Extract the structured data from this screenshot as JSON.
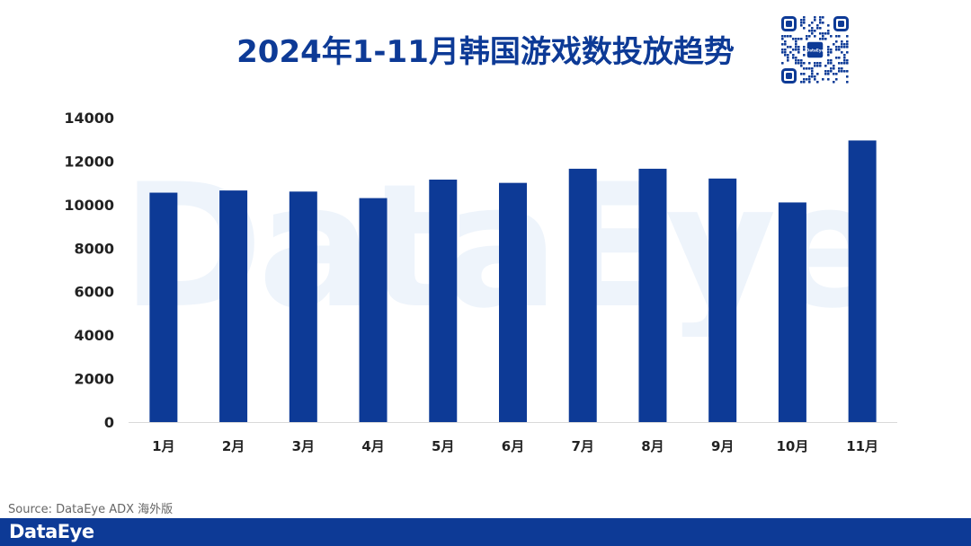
{
  "header": {
    "title": "2024年1-11月韩国游戏数投放趋势",
    "qr_center_label": "DataEye"
  },
  "watermark": "DataEye",
  "chart_data": {
    "type": "bar",
    "title": "2024年1-11月韩国游戏数投放趋势",
    "xlabel": "",
    "ylabel": "",
    "categories": [
      "1月",
      "2月",
      "3月",
      "4月",
      "5月",
      "6月",
      "7月",
      "8月",
      "9月",
      "10月",
      "11月"
    ],
    "values": [
      10550,
      10650,
      10600,
      10300,
      11150,
      11000,
      11650,
      11650,
      11200,
      10100,
      12950
    ],
    "ylim": [
      0,
      14000
    ],
    "yticks": [
      0,
      2000,
      4000,
      6000,
      8000,
      10000,
      12000,
      14000
    ],
    "grid": false,
    "legend": "none",
    "bar_color": "#0d3a96"
  },
  "footer": {
    "source": "Source: DataEye ADX 海外版",
    "logo": "DataEye",
    "color": "#0d3a96"
  }
}
